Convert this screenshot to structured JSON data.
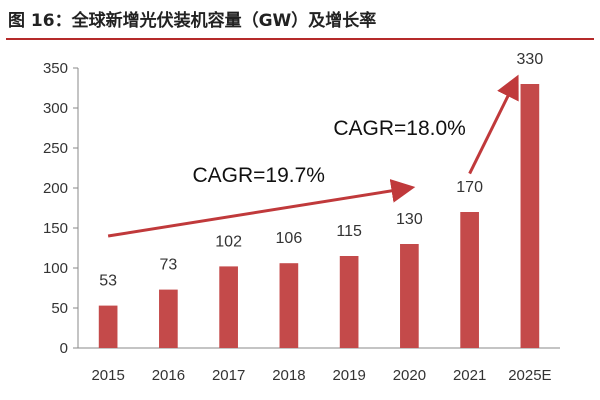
{
  "title": "图 16：全球新增光伏装机容量（GW）及增长率",
  "colors": {
    "bar": "#c44a4a",
    "arrow": "#c0393b",
    "title_rule": "#b52a2a",
    "axis": "#888888"
  },
  "chart_data": {
    "type": "bar",
    "categories": [
      "2015",
      "2016",
      "2017",
      "2018",
      "2019",
      "2020",
      "2021",
      "2025E"
    ],
    "values": [
      53,
      73,
      102,
      106,
      115,
      130,
      170,
      330
    ],
    "ylim": [
      0,
      350
    ],
    "yticks": [
      0,
      50,
      100,
      150,
      200,
      250,
      300,
      350
    ],
    "grid": false,
    "data_labels": true,
    "annotations": [
      {
        "text": "CAGR=19.7%",
        "arrow_from": [
          "2015",
          140
        ],
        "arrow_to": [
          "2020",
          200
        ]
      },
      {
        "text": "CAGR=18.0%",
        "arrow_from": [
          "2021",
          218
        ],
        "arrow_to": [
          "2025E",
          335
        ]
      }
    ]
  }
}
